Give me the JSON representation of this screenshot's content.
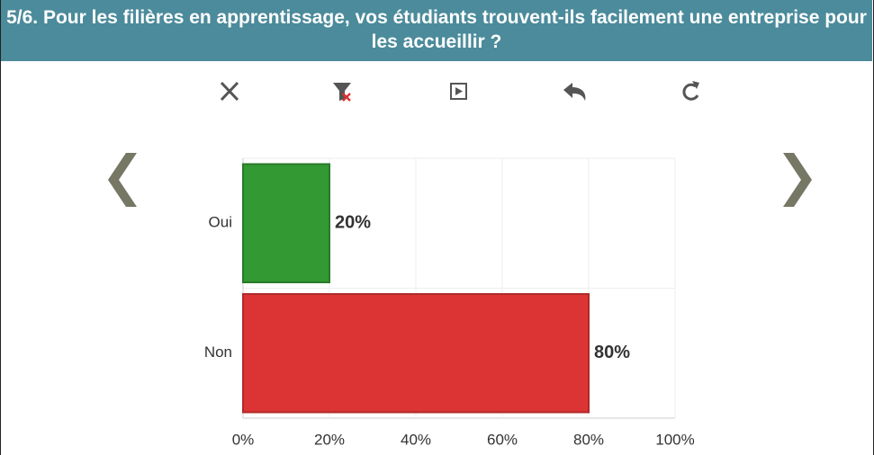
{
  "chart_data": {
    "type": "bar",
    "orientation": "horizontal",
    "title": "5/6. Pour les filières en apprentissage, vos étudiants trouvent-ils facilement une entreprise pour les accueillir ?",
    "categories": [
      "Oui",
      "Non"
    ],
    "values": [
      20,
      80
    ],
    "value_labels": [
      "20%",
      "80%"
    ],
    "colors": [
      "#339933",
      "#dc3434"
    ],
    "xlim": [
      0,
      100
    ],
    "xticks": [
      {
        "value": 0,
        "label": "0%"
      },
      {
        "value": 20,
        "label": "20%"
      },
      {
        "value": 40,
        "label": "40%"
      },
      {
        "value": 60,
        "label": "60%"
      },
      {
        "value": 80,
        "label": "80%"
      },
      {
        "value": 100,
        "label": "100%"
      }
    ],
    "grid": true
  }
}
